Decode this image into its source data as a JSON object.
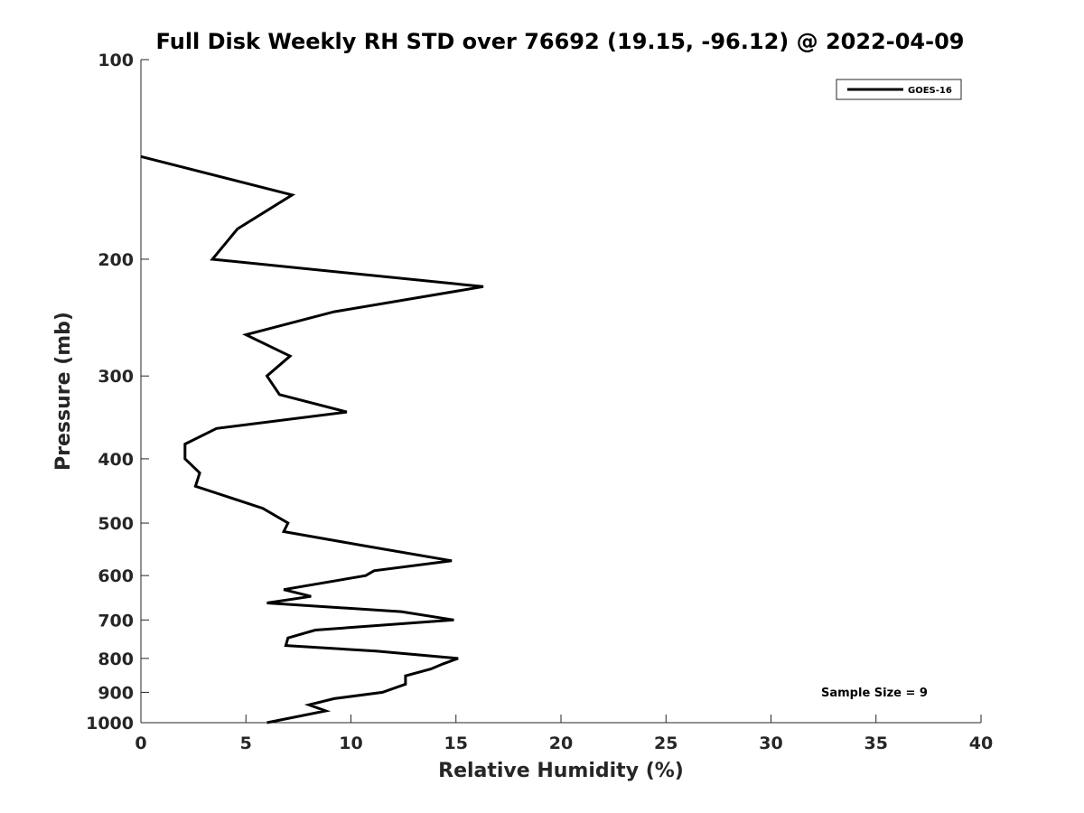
{
  "chart_data": {
    "type": "line",
    "title": "Full Disk Weekly RH STD over 76692 (19.15, -96.12) @ 2022-04-09",
    "xlabel": "Relative Humidity (%)",
    "ylabel": "Pressure (mb)",
    "xlim": [
      0,
      40
    ],
    "ylim": [
      100,
      1000
    ],
    "y_scale": "log",
    "y_reversed": true,
    "x_ticks": [
      0,
      5,
      10,
      15,
      20,
      25,
      30,
      35,
      40
    ],
    "y_ticks": [
      100,
      200,
      300,
      400,
      500,
      600,
      700,
      800,
      900,
      1000
    ],
    "grid": false,
    "legend_position": "top-right",
    "annotation": "Sample Size = 9",
    "series": [
      {
        "name": "GOES-16",
        "color": "#000000",
        "points": [
          [
            0.0,
            140
          ],
          [
            7.2,
            160
          ],
          [
            4.6,
            180
          ],
          [
            3.4,
            200
          ],
          [
            16.3,
            220
          ],
          [
            9.2,
            240
          ],
          [
            5.0,
            260
          ],
          [
            7.1,
            280
          ],
          [
            6.0,
            300
          ],
          [
            6.6,
            320
          ],
          [
            9.8,
            340
          ],
          [
            3.6,
            360
          ],
          [
            2.1,
            380
          ],
          [
            2.1,
            400
          ],
          [
            2.8,
            420
          ],
          [
            2.6,
            440
          ],
          [
            5.8,
            475
          ],
          [
            7.0,
            500
          ],
          [
            6.8,
            515
          ],
          [
            10.5,
            540
          ],
          [
            14.8,
            570
          ],
          [
            11.1,
            590
          ],
          [
            10.7,
            600
          ],
          [
            6.8,
            630
          ],
          [
            8.1,
            645
          ],
          [
            6.0,
            660
          ],
          [
            12.4,
            680
          ],
          [
            14.9,
            700
          ],
          [
            8.3,
            725
          ],
          [
            7.0,
            745
          ],
          [
            6.9,
            765
          ],
          [
            11.2,
            780
          ],
          [
            15.1,
            800
          ],
          [
            14.4,
            815
          ],
          [
            13.8,
            830
          ],
          [
            12.6,
            850
          ],
          [
            12.6,
            875
          ],
          [
            11.5,
            900
          ],
          [
            9.2,
            920
          ],
          [
            8.0,
            940
          ],
          [
            8.8,
            960
          ],
          [
            6.0,
            1000
          ]
        ]
      }
    ]
  }
}
